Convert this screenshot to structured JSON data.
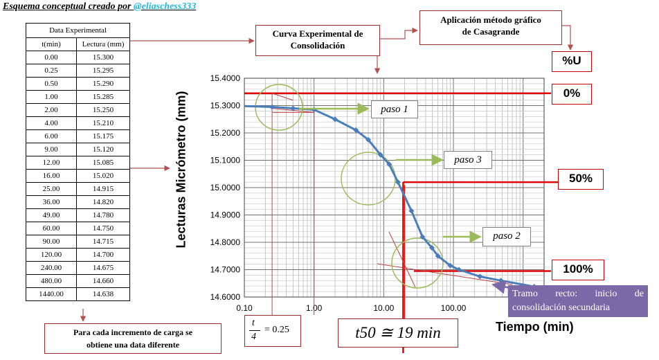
{
  "header": {
    "prefix": "Esquema  conceptual creado por ",
    "handle": "@eliaschess333"
  },
  "table": {
    "caption": "Data Experimental",
    "col1": "t(min)",
    "col2": "Lectura (mm)",
    "rows": [
      [
        "0.00",
        "15.300"
      ],
      [
        "0.25",
        "15.295"
      ],
      [
        "0.50",
        "15.290"
      ],
      [
        "1.00",
        "15.285"
      ],
      [
        "2.00",
        "15.250"
      ],
      [
        "4.00",
        "15.210"
      ],
      [
        "6.00",
        "15.175"
      ],
      [
        "9.00",
        "15.120"
      ],
      [
        "12.00",
        "15.085"
      ],
      [
        "16.00",
        "15.020"
      ],
      [
        "25.00",
        "14.915"
      ],
      [
        "36.00",
        "14.820"
      ],
      [
        "49.00",
        "14.780"
      ],
      [
        "60.00",
        "14.750"
      ],
      [
        "90.00",
        "14.715"
      ],
      [
        "120.00",
        "14.700"
      ],
      [
        "240.00",
        "14.675"
      ],
      [
        "480.00",
        "14.660"
      ],
      [
        "1440.00",
        "14.638"
      ]
    ]
  },
  "labels": {
    "curve": [
      "Curva Experimental de",
      "Consolidación"
    ],
    "method": [
      "Aplicación método gráfico",
      "de Casagrande"
    ],
    "percent_u": "%U",
    "p0": "0%",
    "p50": "50%",
    "p100": "100%",
    "paso1": "paso 1",
    "paso2": "paso 2",
    "paso3": "paso 3",
    "tramo": "Tramo recto: inicio de consolidación secundaria",
    "note": [
      "Para cada incremento de carga se",
      "obtiene una data diferente"
    ],
    "t_num": "t",
    "t_den": "4",
    "t_val": "= 0.25",
    "t50": "t50 ≅ 19 min"
  },
  "colors": {
    "curve": "#4a7ebb",
    "red": "#e00000",
    "green": "#9bbb59",
    "purple": "#7b68a6",
    "arrow": "#b05050"
  },
  "chart_data": {
    "type": "scatter",
    "xscale": "log",
    "xlim": [
      0.1,
      2000
    ],
    "ylim": [
      14.6,
      15.4
    ],
    "xlabel": "Tiempo (min)",
    "ylabel": "Lecturas Micrómetro (mm)",
    "xticks": [
      "0.10",
      "1.00",
      "10.00",
      "100.00",
      "1000.00"
    ],
    "yticks": [
      "14.6000",
      "14.7000",
      "14.8000",
      "14.9000",
      "15.0000",
      "15.1000",
      "15.2000",
      "15.3000",
      "15.4000"
    ],
    "grid": true,
    "x": [
      0.25,
      0.5,
      1,
      2,
      4,
      6,
      9,
      12,
      16,
      25,
      36,
      49,
      60,
      90,
      120,
      240,
      480,
      1440
    ],
    "y": [
      15.295,
      15.29,
      15.285,
      15.25,
      15.21,
      15.175,
      15.12,
      15.085,
      15.02,
      14.915,
      14.82,
      14.78,
      14.75,
      14.715,
      14.7,
      14.675,
      14.66,
      14.638
    ],
    "level_0": 15.345,
    "level_50": 15.02,
    "level_100": 14.695,
    "t50": 19,
    "t_quarter": 0.25
  }
}
